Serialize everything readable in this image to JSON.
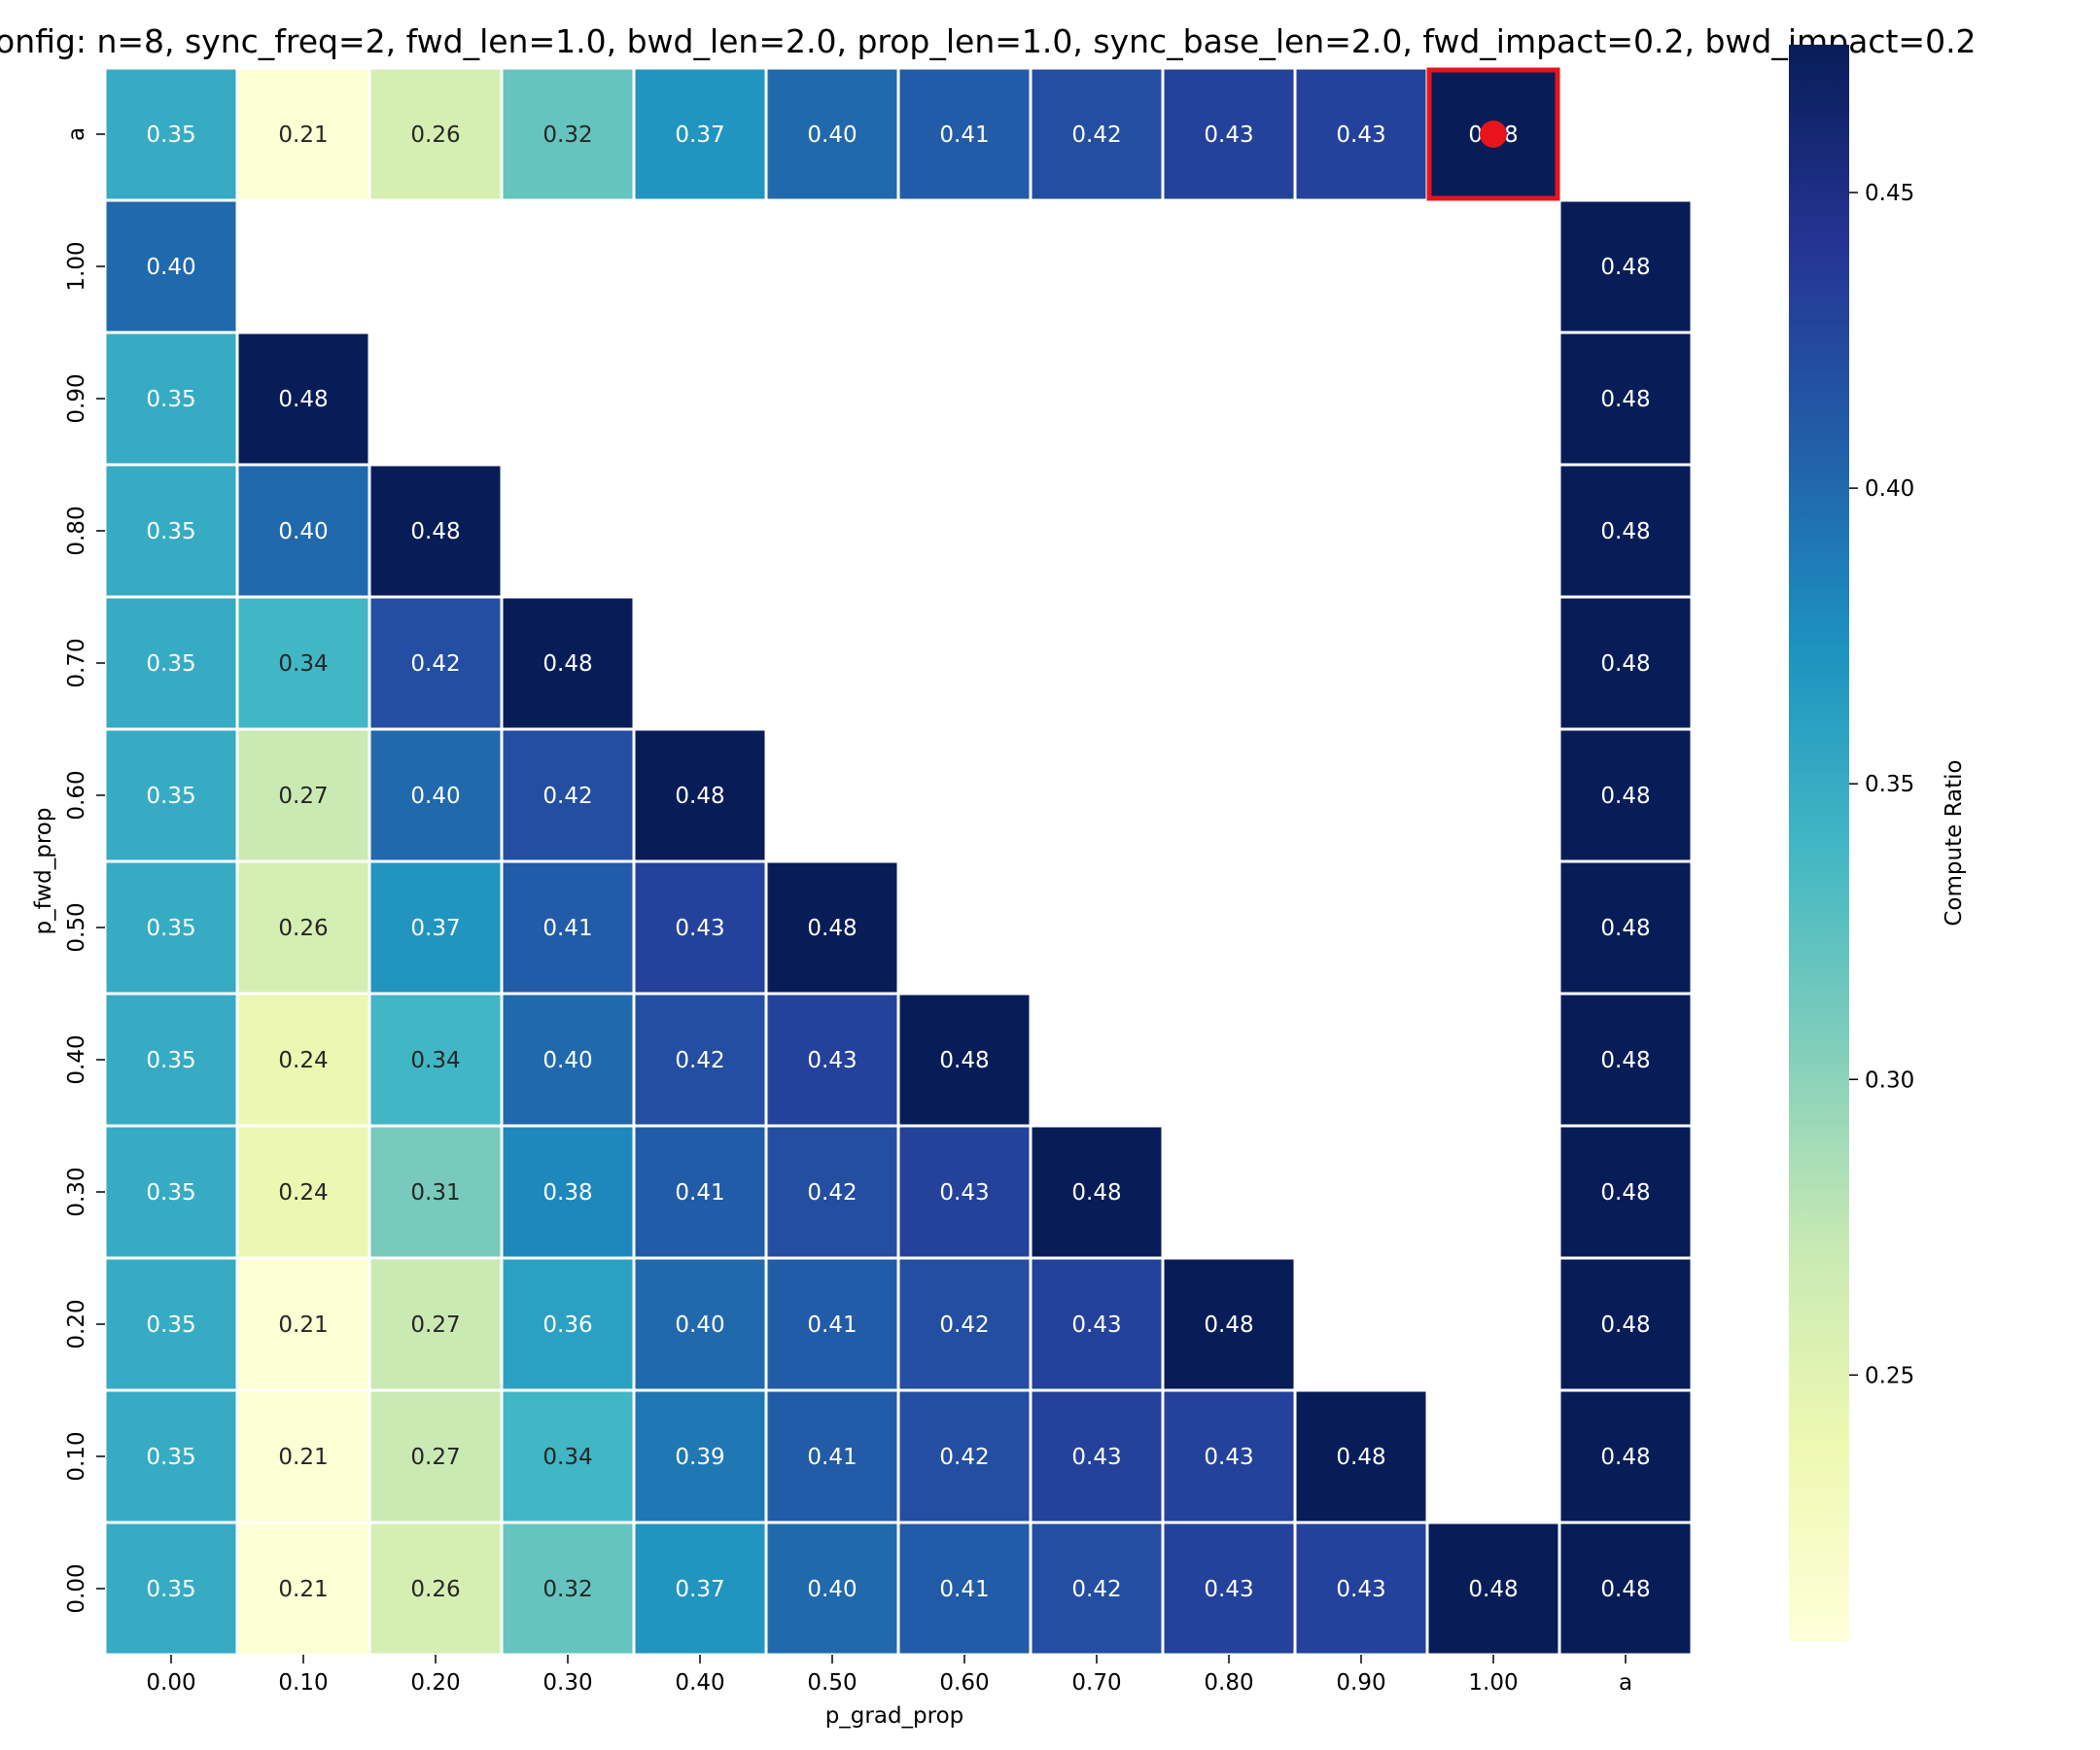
{
  "chart_data": {
    "type": "heatmap",
    "title": "onfig: n=8, sync_freq=2, fwd_len=1.0, bwd_len=2.0, prop_len=1.0, sync_base_len=2.0, fwd_impact=0.2, bwd_impact=0.2",
    "xlabel": "p_grad_prop",
    "ylabel": "p_fwd_prop",
    "x_categories": [
      "0.00",
      "0.10",
      "0.20",
      "0.30",
      "0.40",
      "0.50",
      "0.60",
      "0.70",
      "0.80",
      "0.90",
      "1.00",
      "a"
    ],
    "y_categories": [
      "a",
      "1.00",
      "0.90",
      "0.80",
      "0.70",
      "0.60",
      "0.50",
      "0.40",
      "0.30",
      "0.20",
      "0.10",
      "0.00"
    ],
    "values": [
      [
        0.35,
        0.21,
        0.26,
        0.32,
        0.37,
        0.4,
        0.41,
        0.42,
        0.43,
        0.43,
        0.48,
        null
      ],
      [
        0.4,
        null,
        null,
        null,
        null,
        null,
        null,
        null,
        null,
        null,
        null,
        0.48
      ],
      [
        0.35,
        0.48,
        null,
        null,
        null,
        null,
        null,
        null,
        null,
        null,
        null,
        0.48
      ],
      [
        0.35,
        0.4,
        0.48,
        null,
        null,
        null,
        null,
        null,
        null,
        null,
        null,
        0.48
      ],
      [
        0.35,
        0.34,
        0.42,
        0.48,
        null,
        null,
        null,
        null,
        null,
        null,
        null,
        0.48
      ],
      [
        0.35,
        0.27,
        0.4,
        0.42,
        0.48,
        null,
        null,
        null,
        null,
        null,
        null,
        0.48
      ],
      [
        0.35,
        0.26,
        0.37,
        0.41,
        0.43,
        0.48,
        null,
        null,
        null,
        null,
        null,
        0.48
      ],
      [
        0.35,
        0.24,
        0.34,
        0.4,
        0.42,
        0.43,
        0.48,
        null,
        null,
        null,
        null,
        0.48
      ],
      [
        0.35,
        0.24,
        0.31,
        0.38,
        0.41,
        0.42,
        0.43,
        0.48,
        null,
        null,
        null,
        0.48
      ],
      [
        0.35,
        0.21,
        0.27,
        0.36,
        0.4,
        0.41,
        0.42,
        0.43,
        0.48,
        null,
        null,
        0.48
      ],
      [
        0.35,
        0.21,
        0.27,
        0.34,
        0.39,
        0.41,
        0.42,
        0.43,
        0.43,
        0.48,
        null,
        0.48
      ],
      [
        0.35,
        0.21,
        0.26,
        0.32,
        0.37,
        0.4,
        0.41,
        0.42,
        0.43,
        0.43,
        0.48,
        0.48
      ]
    ],
    "colormap": "YlGnBu",
    "vmin": 0.205,
    "vmax": 0.475,
    "colorbar": {
      "label": "Compute Ratio",
      "ticks": [
        0.25,
        0.3,
        0.35,
        0.4,
        0.45
      ],
      "tick_labels": [
        "0.25",
        "0.30",
        "0.35",
        "0.40",
        "0.45"
      ]
    },
    "highlight": {
      "x": "1.00",
      "y": "a",
      "color": "#e8141b"
    },
    "grid": false
  }
}
